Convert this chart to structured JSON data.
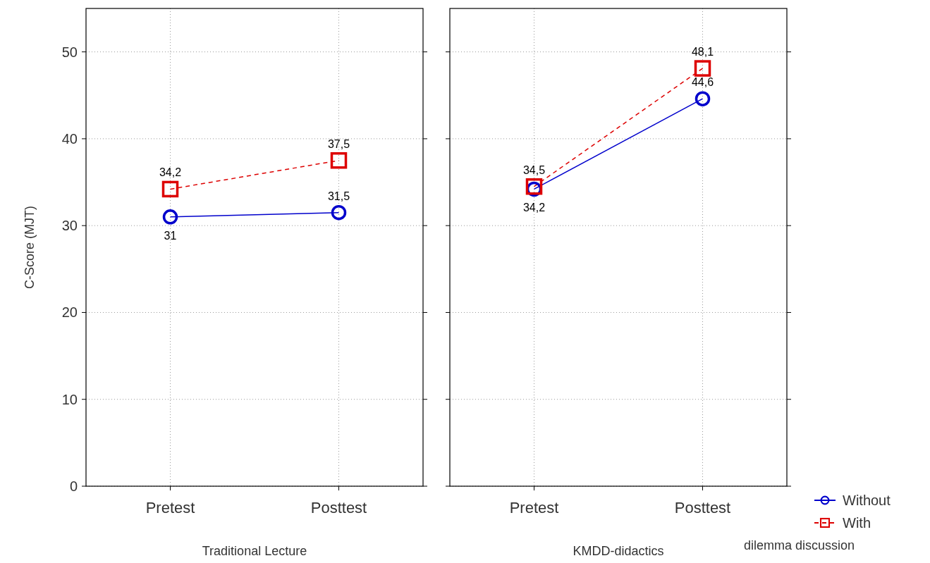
{
  "chart_data": [
    {
      "type": "line",
      "xlabel": "Traditional Lecture",
      "ylabel": "C-Score (MJT)",
      "categories": [
        "Pretest",
        "Posttest"
      ],
      "ylim": [
        0,
        55
      ],
      "yticks": [
        0,
        10,
        20,
        30,
        40,
        50
      ],
      "grid": true,
      "legend": "bottom right",
      "legend_title": "dilemma discussion",
      "series": [
        {
          "name": "Without",
          "color": "#0000cc",
          "values": [
            31,
            31.5
          ],
          "value_labels": [
            "31",
            "31,5"
          ],
          "marker": "circle",
          "line_style": "solid"
        },
        {
          "name": "With",
          "color": "#dd0000",
          "values": [
            34.2,
            37.5
          ],
          "value_labels": [
            "34,2",
            "37,5"
          ],
          "marker": "square",
          "line_style": "dashed"
        }
      ]
    },
    {
      "type": "line",
      "xlabel": "KMDD-didactics",
      "categories": [
        "Pretest",
        "Posttest"
      ],
      "ylim": [
        0,
        55
      ],
      "yticks": [
        0,
        10,
        20,
        30,
        40,
        50
      ],
      "grid": true,
      "tick_labels": "x",
      "series": [
        {
          "color": "#0000cc",
          "values": [
            34.2,
            44.6
          ],
          "value_labels": [
            "34,2",
            "44,6"
          ],
          "marker": "circle",
          "line_style": "solid"
        },
        {
          "color": "#dd0000",
          "values": [
            34.5,
            48.1
          ],
          "value_labels": [
            "34,5",
            "48,1"
          ],
          "marker": "square",
          "line_style": "dashed"
        }
      ]
    }
  ]
}
